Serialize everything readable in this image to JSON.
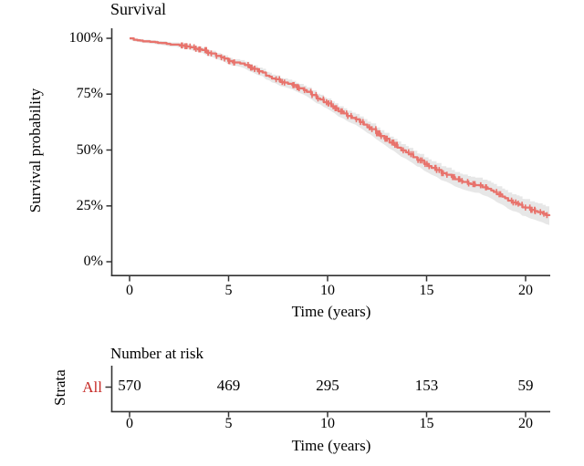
{
  "colors": {
    "curve": "#e8736c",
    "band": "#e7e7e7",
    "strata_label_red": "#c62a26",
    "axis": "#333333"
  },
  "survival_plot": {
    "title": "Survival",
    "ylabel": "Survival probability",
    "xlabel": "Time (years)",
    "y_ticks": [
      "100%",
      "75%",
      "50%",
      "25%",
      "0%"
    ],
    "x_ticks": [
      "0",
      "5",
      "10",
      "15",
      "20"
    ]
  },
  "risk_table": {
    "title": "Number at risk",
    "ylabel": "Strata",
    "xlabel": "Time (years)",
    "row_label": "All",
    "x_ticks": [
      "0",
      "5",
      "10",
      "15",
      "20"
    ],
    "values": [
      "570",
      "469",
      "295",
      "153",
      "59"
    ]
  },
  "chart_data": [
    {
      "type": "line",
      "subtype": "kaplan-meier",
      "title": "Survival",
      "xlabel": "Time (years)",
      "ylabel": "Survival probability",
      "xlim": [
        0,
        21.2
      ],
      "ylim": [
        0,
        100
      ],
      "x_ticks": [
        0,
        5,
        10,
        15,
        20
      ],
      "y_tick_labels": [
        "0%",
        "25%",
        "50%",
        "75%",
        "100%"
      ],
      "grid": false,
      "legend": "none",
      "series": [
        {
          "name": "All",
          "color": "#e8736c",
          "confidence_band": true,
          "points": [
            [
              0,
              100
            ],
            [
              0.4,
              99.2
            ],
            [
              1,
              98.5
            ],
            [
              2,
              97.5
            ],
            [
              2.2,
              97.3
            ],
            [
              3,
              96
            ],
            [
              3.5,
              95
            ],
            [
              4,
              93.5
            ],
            [
              4.5,
              91.8
            ],
            [
              5,
              90
            ],
            [
              5.5,
              88.8
            ],
            [
              6,
              87.3
            ],
            [
              6.5,
              85.5
            ],
            [
              7,
              83
            ],
            [
              7.5,
              81
            ],
            [
              8,
              79.5
            ],
            [
              8.5,
              77.8
            ],
            [
              9,
              75.8
            ],
            [
              9.5,
              73
            ],
            [
              10,
              70.4
            ],
            [
              10.5,
              67.8
            ],
            [
              11,
              65.4
            ],
            [
              11.4,
              63.6
            ],
            [
              12,
              60.3
            ],
            [
              12.4,
              58
            ],
            [
              13,
              54.4
            ],
            [
              13.4,
              51.8
            ],
            [
              14,
              48.6
            ],
            [
              14.5,
              46
            ],
            [
              15,
              43.4
            ],
            [
              15.4,
              41.4
            ],
            [
              16,
              38.9
            ],
            [
              16.4,
              37.2
            ],
            [
              16.8,
              35.6
            ],
            [
              17.2,
              34.7
            ],
            [
              17.7,
              34.2
            ],
            [
              18,
              32.9
            ],
            [
              18.4,
              31
            ],
            [
              19,
              27.9
            ],
            [
              19.4,
              26.3
            ],
            [
              19.8,
              24.8
            ],
            [
              20.2,
              23.3
            ],
            [
              20.6,
              22.3
            ],
            [
              21,
              21.2
            ],
            [
              21.2,
              20.6
            ]
          ]
        }
      ],
      "censor_marks": {
        "from": 2.2,
        "to": 21.15,
        "count": 140
      }
    },
    {
      "type": "table",
      "title": "Number at risk",
      "strata": [
        "All"
      ],
      "times": [
        0,
        5,
        10,
        15,
        20
      ],
      "at_risk": [
        570,
        469,
        295,
        153,
        59
      ]
    }
  ]
}
